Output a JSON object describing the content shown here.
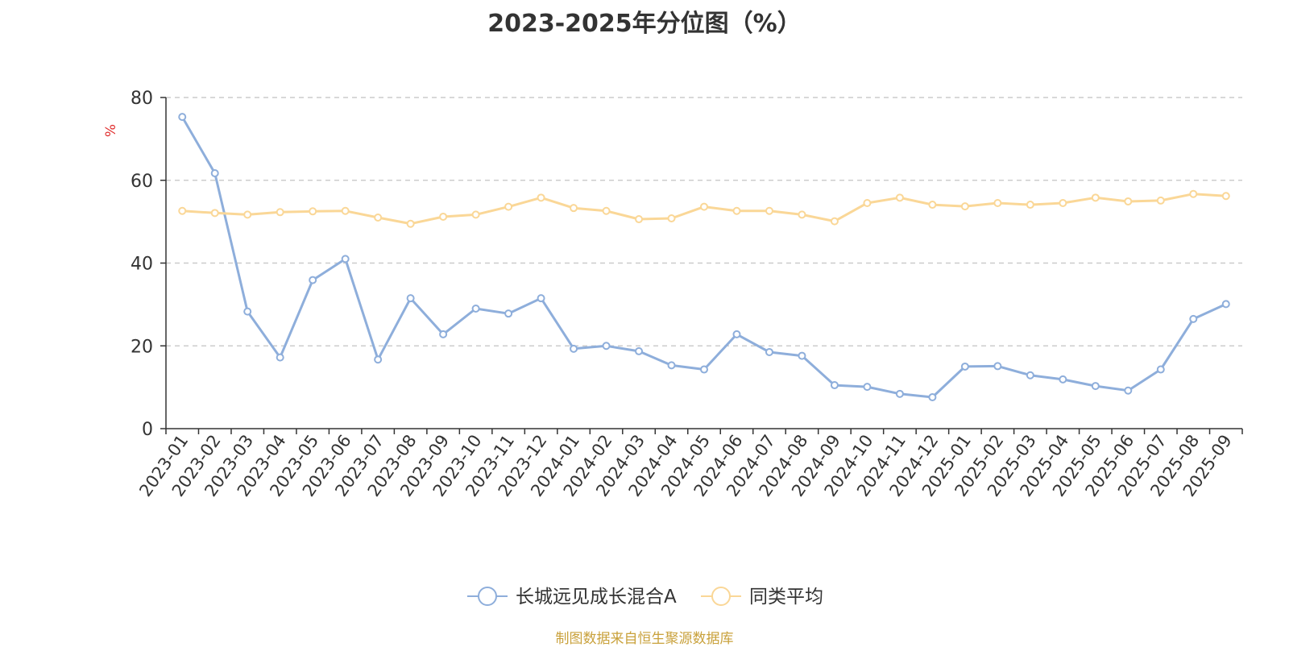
{
  "chart_data": {
    "type": "line",
    "title": "2023-2025年分位图（%）",
    "ylabel": "%",
    "xlabel": "",
    "ylim": [
      0,
      80
    ],
    "yticks": [
      0,
      20,
      40,
      60,
      80
    ],
    "grid": "horizontal-dashed",
    "legend_position": "bottom-center",
    "categories": [
      "2023-01",
      "2023-02",
      "2023-03",
      "2023-04",
      "2023-05",
      "2023-06",
      "2023-07",
      "2023-08",
      "2023-09",
      "2023-10",
      "2023-11",
      "2023-12",
      "2024-01",
      "2024-02",
      "2024-03",
      "2024-04",
      "2024-05",
      "2024-06",
      "2024-07",
      "2024-08",
      "2024-09",
      "2024-10",
      "2024-11",
      "2024-12",
      "2025-01",
      "2025-02",
      "2025-03",
      "2025-04",
      "2025-05",
      "2025-06",
      "2025-07",
      "2025-08",
      "2025-09"
    ],
    "series": [
      {
        "name": "长城远见成长混合A",
        "color": "#8eaedb",
        "values": [
          75.3,
          61.7,
          28.3,
          17.2,
          35.9,
          41.0,
          16.7,
          31.5,
          22.8,
          29.0,
          27.8,
          31.5,
          19.3,
          20.0,
          18.7,
          15.3,
          14.3,
          22.8,
          18.5,
          17.6,
          10.5,
          10.1,
          8.4,
          7.6,
          15.0,
          15.1,
          12.9,
          11.9,
          10.3,
          9.2,
          14.3,
          26.5,
          30.1
        ]
      },
      {
        "name": "同类平均",
        "color": "#fad797",
        "values": [
          52.6,
          52.1,
          51.7,
          52.3,
          52.5,
          52.6,
          51.0,
          49.5,
          51.2,
          51.7,
          53.6,
          55.8,
          53.3,
          52.6,
          50.6,
          50.8,
          53.6,
          52.6,
          52.6,
          51.7,
          50.1,
          54.5,
          55.8,
          54.1,
          53.7,
          54.5,
          54.1,
          54.5,
          55.8,
          54.9,
          55.1,
          56.7,
          56.2
        ]
      }
    ]
  },
  "source": "制图数据来自恒生聚源数据库"
}
